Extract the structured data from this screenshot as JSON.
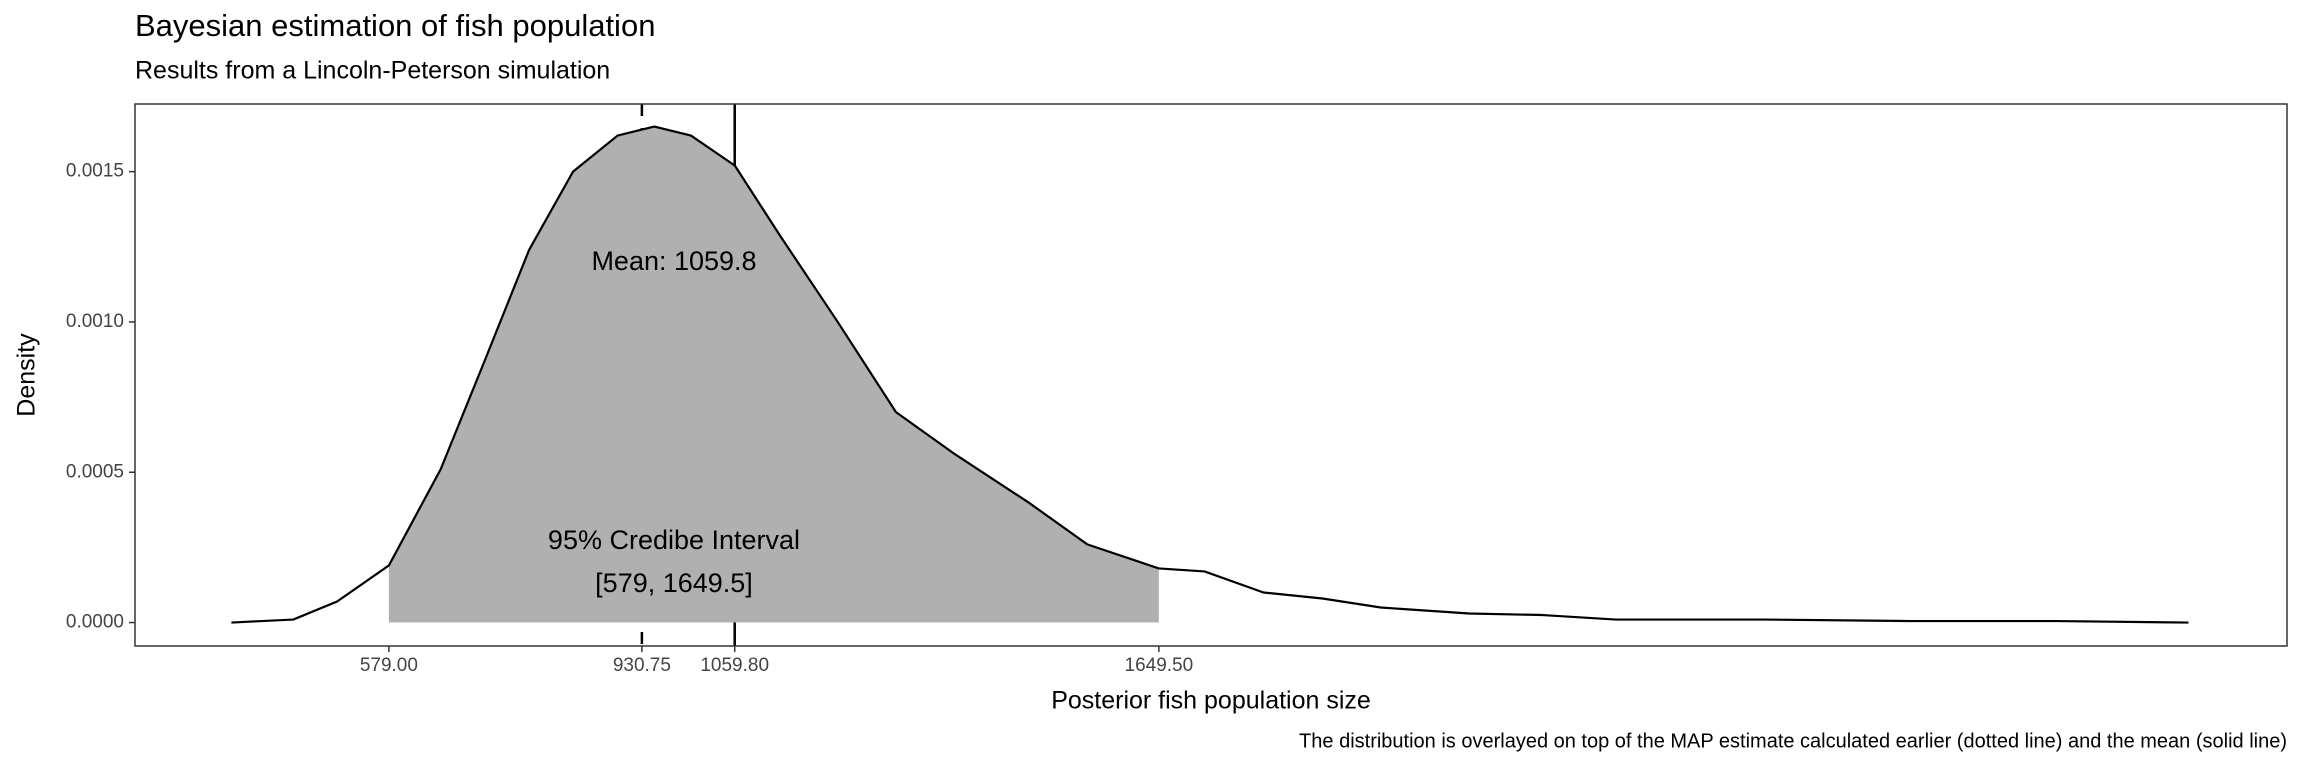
{
  "chart_data": {
    "type": "density",
    "title": "Bayesian estimation of fish population",
    "subtitle": "Results from a Lincoln-Peterson simulation",
    "x_label": "Posterior fish population size",
    "y_label": "Density",
    "caption": "The distribution is overlayed on top of the MAP estimate calculated earlier (dotted line) and the mean (solid line)",
    "annotations": [
      "Mean: 1059.8",
      "95% Credibe Interval",
      "[579, 1649.5]"
    ],
    "x": [
      360,
      446,
      507,
      579,
      651,
      712,
      774,
      835,
      897,
      948,
      999,
      1060,
      1122,
      1203,
      1284,
      1366,
      1468,
      1550,
      1649.5,
      1713,
      1795,
      1877,
      1958,
      2081,
      2183,
      2285,
      2490,
      2694,
      2898,
      3081
    ],
    "values": [
      0,
      1e-05,
      7e-05,
      0.00019,
      0.00051,
      0.00087,
      0.00124,
      0.0015,
      0.00162,
      0.00165,
      0.00162,
      0.00152,
      0.00129,
      0.001,
      0.0007,
      0.00056,
      0.0004,
      0.00026,
      0.00018,
      0.00017,
      0.0001,
      8e-05,
      5e-05,
      3e-05,
      2.5e-05,
      1e-05,
      1e-05,
      5e-06,
      5e-06,
      0
    ],
    "interval": [
      579,
      1649.5
    ],
    "map_estimate": 930.75,
    "mean": 1059.8,
    "fill_color": "#b0b0b0",
    "line_color": "#000000",
    "xlim": [
      226,
      3218
    ],
    "ylim": [
      -7.8e-05,
      0.001725
    ],
    "xticks": [
      {
        "value": 579,
        "label": "579.00"
      },
      {
        "value": 930.75,
        "label": "930.75"
      },
      {
        "value": 1059.8,
        "label": "1059.80"
      },
      {
        "value": 1649.5,
        "label": "1649.50"
      }
    ],
    "yticks": [
      {
        "value": 0,
        "label": "0.0000"
      },
      {
        "value": 0.0005,
        "label": "0.0005"
      },
      {
        "value": 0.001,
        "label": "0.0010"
      },
      {
        "value": 0.0015,
        "label": "0.0015"
      }
    ],
    "grid": false
  }
}
